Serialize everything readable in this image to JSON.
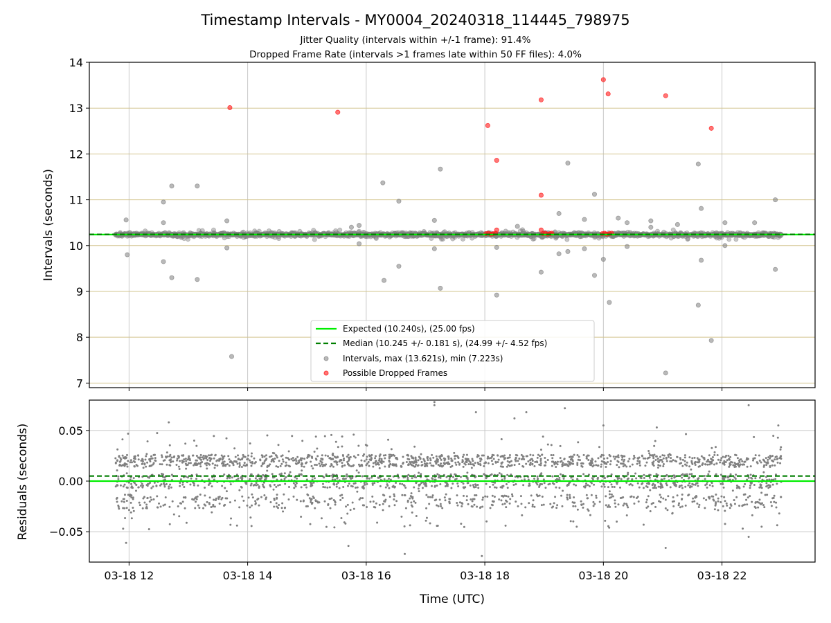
{
  "chart_data": {
    "title": "Timestamp Intervals - MY0004_20240318_114445_798975",
    "subtitle_lines": [
      "Jitter Quality (intervals within +/-1 frame): 91.4%",
      "Dropped Frame Rate (intervals >1 frames late within 50 FF files): 4.0%"
    ],
    "xlabel": "Time (UTC)",
    "x_range_hours": [
      11.33,
      23.57
    ],
    "x_ticks": [
      {
        "value": 12,
        "label": "03-18 12"
      },
      {
        "value": 14,
        "label": "03-18 14"
      },
      {
        "value": 16,
        "label": "03-18 16"
      },
      {
        "value": 18,
        "label": "03-18 18"
      },
      {
        "value": 20,
        "label": "03-18 20"
      },
      {
        "value": 22,
        "label": "03-18 22"
      }
    ],
    "top_panel": {
      "type": "scatter",
      "ylabel": "Intervals (seconds)",
      "ylim": [
        6.9,
        14.0
      ],
      "y_ticks": [
        7,
        8,
        9,
        10,
        11,
        12,
        13,
        14
      ],
      "expected_value": 10.24,
      "median_value": 10.245,
      "colors": {
        "expected": "#00ee00",
        "median": "#007f00",
        "intervals": "#808080",
        "dropped": "#ff1a1a",
        "hgrid": "#d2c48e",
        "vgrid": "#c8c8c8"
      },
      "legend": {
        "placement": "lower center",
        "entries": [
          {
            "label": "Expected (10.240s), (25.00 fps)",
            "marker": "line-solid"
          },
          {
            "label": "Median (10.245 +/- 0.181 s), (24.99 +/- 4.52 fps)",
            "marker": "line-dashed"
          },
          {
            "label": "Intervals, max (13.621s), min (7.223s)",
            "marker": "dot-gray"
          },
          {
            "label": "Possible Dropped Frames",
            "marker": "dot-red"
          }
        ]
      },
      "outliers": [
        {
          "x": 11.95,
          "y": 10.56
        },
        {
          "x": 11.97,
          "y": 9.8
        },
        {
          "x": 12.58,
          "y": 10.95
        },
        {
          "x": 12.58,
          "y": 10.5
        },
        {
          "x": 12.58,
          "y": 9.65
        },
        {
          "x": 12.72,
          "y": 11.3
        },
        {
          "x": 12.72,
          "y": 9.3
        },
        {
          "x": 13.15,
          "y": 11.3
        },
        {
          "x": 13.15,
          "y": 9.26
        },
        {
          "x": 13.65,
          "y": 10.54
        },
        {
          "x": 13.65,
          "y": 9.95
        },
        {
          "x": 13.73,
          "y": 7.58
        },
        {
          "x": 15.75,
          "y": 10.4
        },
        {
          "x": 15.88,
          "y": 10.44
        },
        {
          "x": 15.88,
          "y": 10.04
        },
        {
          "x": 16.28,
          "y": 11.37
        },
        {
          "x": 16.3,
          "y": 9.24
        },
        {
          "x": 16.55,
          "y": 10.97
        },
        {
          "x": 16.55,
          "y": 9.55
        },
        {
          "x": 17.15,
          "y": 10.55
        },
        {
          "x": 17.15,
          "y": 9.93
        },
        {
          "x": 17.25,
          "y": 11.67
        },
        {
          "x": 17.25,
          "y": 9.07
        },
        {
          "x": 18.2,
          "y": 8.92
        },
        {
          "x": 18.2,
          "y": 9.96
        },
        {
          "x": 18.55,
          "y": 10.42
        },
        {
          "x": 18.95,
          "y": 9.42
        },
        {
          "x": 19.25,
          "y": 10.7
        },
        {
          "x": 19.25,
          "y": 9.82
        },
        {
          "x": 19.4,
          "y": 11.8
        },
        {
          "x": 19.4,
          "y": 9.87
        },
        {
          "x": 19.68,
          "y": 10.57
        },
        {
          "x": 19.68,
          "y": 9.93
        },
        {
          "x": 19.85,
          "y": 11.12
        },
        {
          "x": 19.85,
          "y": 9.35
        },
        {
          "x": 20.0,
          "y": 9.7
        },
        {
          "x": 20.1,
          "y": 8.76
        },
        {
          "x": 20.25,
          "y": 10.6
        },
        {
          "x": 20.4,
          "y": 10.5
        },
        {
          "x": 20.4,
          "y": 9.98
        },
        {
          "x": 20.8,
          "y": 10.54
        },
        {
          "x": 20.8,
          "y": 10.4
        },
        {
          "x": 21.05,
          "y": 7.22
        },
        {
          "x": 21.25,
          "y": 10.46
        },
        {
          "x": 21.6,
          "y": 11.78
        },
        {
          "x": 21.6,
          "y": 8.7
        },
        {
          "x": 21.65,
          "y": 10.81
        },
        {
          "x": 21.65,
          "y": 9.68
        },
        {
          "x": 21.82,
          "y": 7.93
        },
        {
          "x": 22.05,
          "y": 10.5
        },
        {
          "x": 22.05,
          "y": 10.0
        },
        {
          "x": 22.55,
          "y": 10.5
        },
        {
          "x": 22.9,
          "y": 11.0
        },
        {
          "x": 22.9,
          "y": 9.48
        }
      ],
      "dropped_frames": [
        {
          "x": 13.7,
          "y": 13.01
        },
        {
          "x": 15.52,
          "y": 12.91
        },
        {
          "x": 18.05,
          "y": 12.62
        },
        {
          "x": 18.2,
          "y": 11.86
        },
        {
          "x": 18.2,
          "y": 10.34
        },
        {
          "x": 18.95,
          "y": 13.18
        },
        {
          "x": 18.95,
          "y": 11.1
        },
        {
          "x": 18.95,
          "y": 10.34
        },
        {
          "x": 20.0,
          "y": 13.62
        },
        {
          "x": 20.08,
          "y": 13.31
        },
        {
          "x": 21.05,
          "y": 13.27
        },
        {
          "x": 21.82,
          "y": 12.56
        },
        {
          "x": 18.02,
          "y": 10.26
        },
        {
          "x": 18.06,
          "y": 10.27
        },
        {
          "x": 18.1,
          "y": 10.25
        },
        {
          "x": 18.14,
          "y": 10.26
        },
        {
          "x": 18.18,
          "y": 10.27
        },
        {
          "x": 18.98,
          "y": 10.26
        },
        {
          "x": 19.02,
          "y": 10.27
        },
        {
          "x": 19.06,
          "y": 10.25
        },
        {
          "x": 19.1,
          "y": 10.26
        },
        {
          "x": 19.13,
          "y": 10.27
        },
        {
          "x": 19.98,
          "y": 10.26
        },
        {
          "x": 20.02,
          "y": 10.27
        },
        {
          "x": 20.06,
          "y": 10.25
        },
        {
          "x": 20.1,
          "y": 10.26
        },
        {
          "x": 20.14,
          "y": 10.27
        }
      ]
    },
    "bottom_panel": {
      "type": "scatter",
      "ylabel": "Residuals (seconds)",
      "ylim": [
        -0.08,
        0.08
      ],
      "y_ticks": [
        {
          "value": 0.05,
          "label": "0.05"
        },
        {
          "value": 0.0,
          "label": "0.00"
        },
        {
          "value": -0.05,
          "label": "−0.05"
        }
      ],
      "expected_value": 0.0,
      "median_value": 0.005,
      "colors": {
        "points": "#808080",
        "expected": "#00ee00",
        "median": "#007f00",
        "grid": "#c8c8c8"
      },
      "notable_points": [
        {
          "x": 11.9,
          "y": -0.047
        },
        {
          "x": 11.95,
          "y": -0.061
        },
        {
          "x": 12.67,
          "y": 0.058
        },
        {
          "x": 14.05,
          "y": -0.036
        },
        {
          "x": 15.65,
          "y": -0.042
        },
        {
          "x": 15.7,
          "y": -0.064
        },
        {
          "x": 16.65,
          "y": -0.072
        },
        {
          "x": 17.15,
          "y": 0.078
        },
        {
          "x": 17.15,
          "y": 0.075
        },
        {
          "x": 17.85,
          "y": 0.068
        },
        {
          "x": 17.95,
          "y": -0.074
        },
        {
          "x": 18.35,
          "y": -0.044
        },
        {
          "x": 18.5,
          "y": 0.062
        },
        {
          "x": 18.7,
          "y": 0.068
        },
        {
          "x": 19.35,
          "y": 0.072
        },
        {
          "x": 19.55,
          "y": -0.045
        },
        {
          "x": 20.0,
          "y": 0.055
        },
        {
          "x": 20.9,
          "y": 0.053
        },
        {
          "x": 21.05,
          "y": -0.066
        },
        {
          "x": 22.45,
          "y": 0.075
        },
        {
          "x": 22.45,
          "y": -0.055
        },
        {
          "x": 22.95,
          "y": 0.055
        }
      ]
    }
  }
}
